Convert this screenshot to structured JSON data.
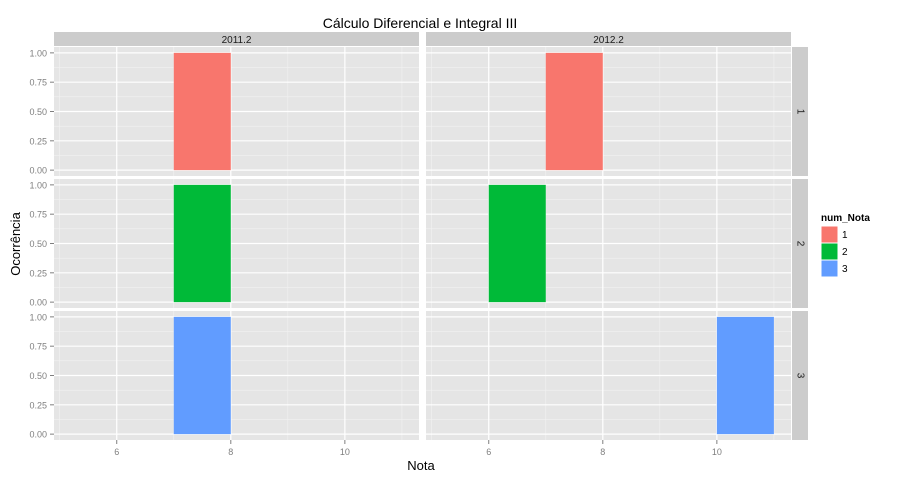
{
  "chart_data": {
    "type": "bar",
    "title": "Cálculo Diferencial e Integral III",
    "xlabel": "Nota",
    "ylabel": "Ocorrência",
    "xlim": [
      4.9,
      11.3
    ],
    "ylim": [
      -0.05,
      1.05
    ],
    "xticks": [
      6,
      8,
      10
    ],
    "yticks": [
      0.0,
      0.25,
      0.5,
      0.75,
      1.0
    ],
    "ytick_labels": [
      "0.00",
      "0.25",
      "0.50",
      "0.75",
      "1.00"
    ],
    "column_facets": [
      "2011.2",
      "2012.2"
    ],
    "row_facets": [
      "1",
      "2",
      "3"
    ],
    "grid": true,
    "legend": {
      "title": "num_Nota",
      "placement": "right",
      "entries": [
        {
          "label": "1",
          "color": "#F8766D"
        },
        {
          "label": "2",
          "color": "#00BA38"
        },
        {
          "label": "3",
          "color": "#619CFF"
        }
      ]
    },
    "bars": [
      {
        "col": "2011.2",
        "row": "1",
        "xmin": 7,
        "xmax": 8,
        "value": 1,
        "series": "1"
      },
      {
        "col": "2012.2",
        "row": "1",
        "xmin": 7,
        "xmax": 8,
        "value": 1,
        "series": "1"
      },
      {
        "col": "2011.2",
        "row": "2",
        "xmin": 7,
        "xmax": 8,
        "value": 1,
        "series": "2"
      },
      {
        "col": "2012.2",
        "row": "2",
        "xmin": 6,
        "xmax": 7,
        "value": 1,
        "series": "2"
      },
      {
        "col": "2011.2",
        "row": "3",
        "xmin": 7,
        "xmax": 8,
        "value": 1,
        "series": "3"
      },
      {
        "col": "2012.2",
        "row": "3",
        "xmin": 10,
        "xmax": 11,
        "value": 1,
        "series": "3"
      }
    ],
    "colors": {
      "panel_bg": "#E5E5E5",
      "grid_major": "#FFFFFF",
      "grid_minor": "#F2F2F2",
      "strip_bg": "#CCCCCC",
      "tick_text": "#7F7F7F",
      "text": "#000000"
    }
  }
}
